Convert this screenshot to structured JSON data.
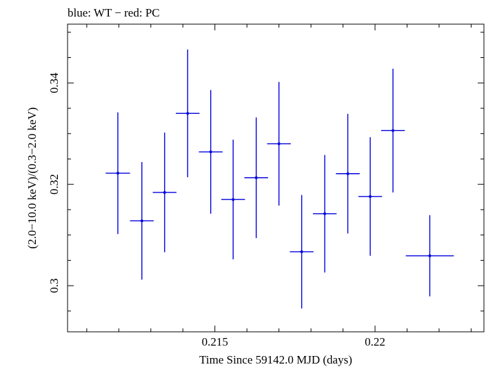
{
  "chart_data": {
    "type": "scatter",
    "title": "blue: WT − red: PC",
    "xlabel": "Time Since 59142.0 MJD (days)",
    "ylabel": "(2.0−10.0 keV)/(0.3−2.0 keV)",
    "xlim": [
      0.2104,
      0.2234
    ],
    "ylim": [
      0.2909,
      0.3516
    ],
    "x_ticks": [
      {
        "value": 0.215,
        "label": "0.215"
      },
      {
        "value": 0.22,
        "label": "0.22"
      }
    ],
    "y_ticks": [
      {
        "value": 0.3,
        "label": "0.3"
      },
      {
        "value": 0.32,
        "label": "0.32"
      },
      {
        "value": 0.34,
        "label": "0.34"
      }
    ],
    "x_minor_step": 0.001,
    "y_minor_step": 0.005,
    "grid": false,
    "series": [
      {
        "color": "#0000dd",
        "points": [
          {
            "x": 0.21197,
            "xerr": 0.00038,
            "y": 0.3222,
            "yerr": 0.012
          },
          {
            "x": 0.21272,
            "xerr": 0.00037,
            "y": 0.3128,
            "yerr": 0.0116
          },
          {
            "x": 0.21343,
            "xerr": 0.00037,
            "y": 0.3184,
            "yerr": 0.0118
          },
          {
            "x": 0.21415,
            "xerr": 0.00037,
            "y": 0.334,
            "yerr": 0.0126
          },
          {
            "x": 0.21487,
            "xerr": 0.00037,
            "y": 0.3264,
            "yerr": 0.0122
          },
          {
            "x": 0.21557,
            "xerr": 0.00037,
            "y": 0.317,
            "yerr": 0.0118
          },
          {
            "x": 0.21629,
            "xerr": 0.00037,
            "y": 0.3213,
            "yerr": 0.0119
          },
          {
            "x": 0.217,
            "xerr": 0.00037,
            "y": 0.328,
            "yerr": 0.0122
          },
          {
            "x": 0.21771,
            "xerr": 0.00037,
            "y": 0.3067,
            "yerr": 0.0112
          },
          {
            "x": 0.21843,
            "xerr": 0.00037,
            "y": 0.3142,
            "yerr": 0.0116
          },
          {
            "x": 0.21915,
            "xerr": 0.00037,
            "y": 0.3221,
            "yerr": 0.0118
          },
          {
            "x": 0.21985,
            "xerr": 0.00037,
            "y": 0.3176,
            "yerr": 0.0117
          },
          {
            "x": 0.22056,
            "xerr": 0.00037,
            "y": 0.3306,
            "yerr": 0.0122
          },
          {
            "x": 0.22171,
            "xerr": 0.00075,
            "y": 0.3059,
            "yerr": 0.008
          }
        ]
      }
    ]
  }
}
